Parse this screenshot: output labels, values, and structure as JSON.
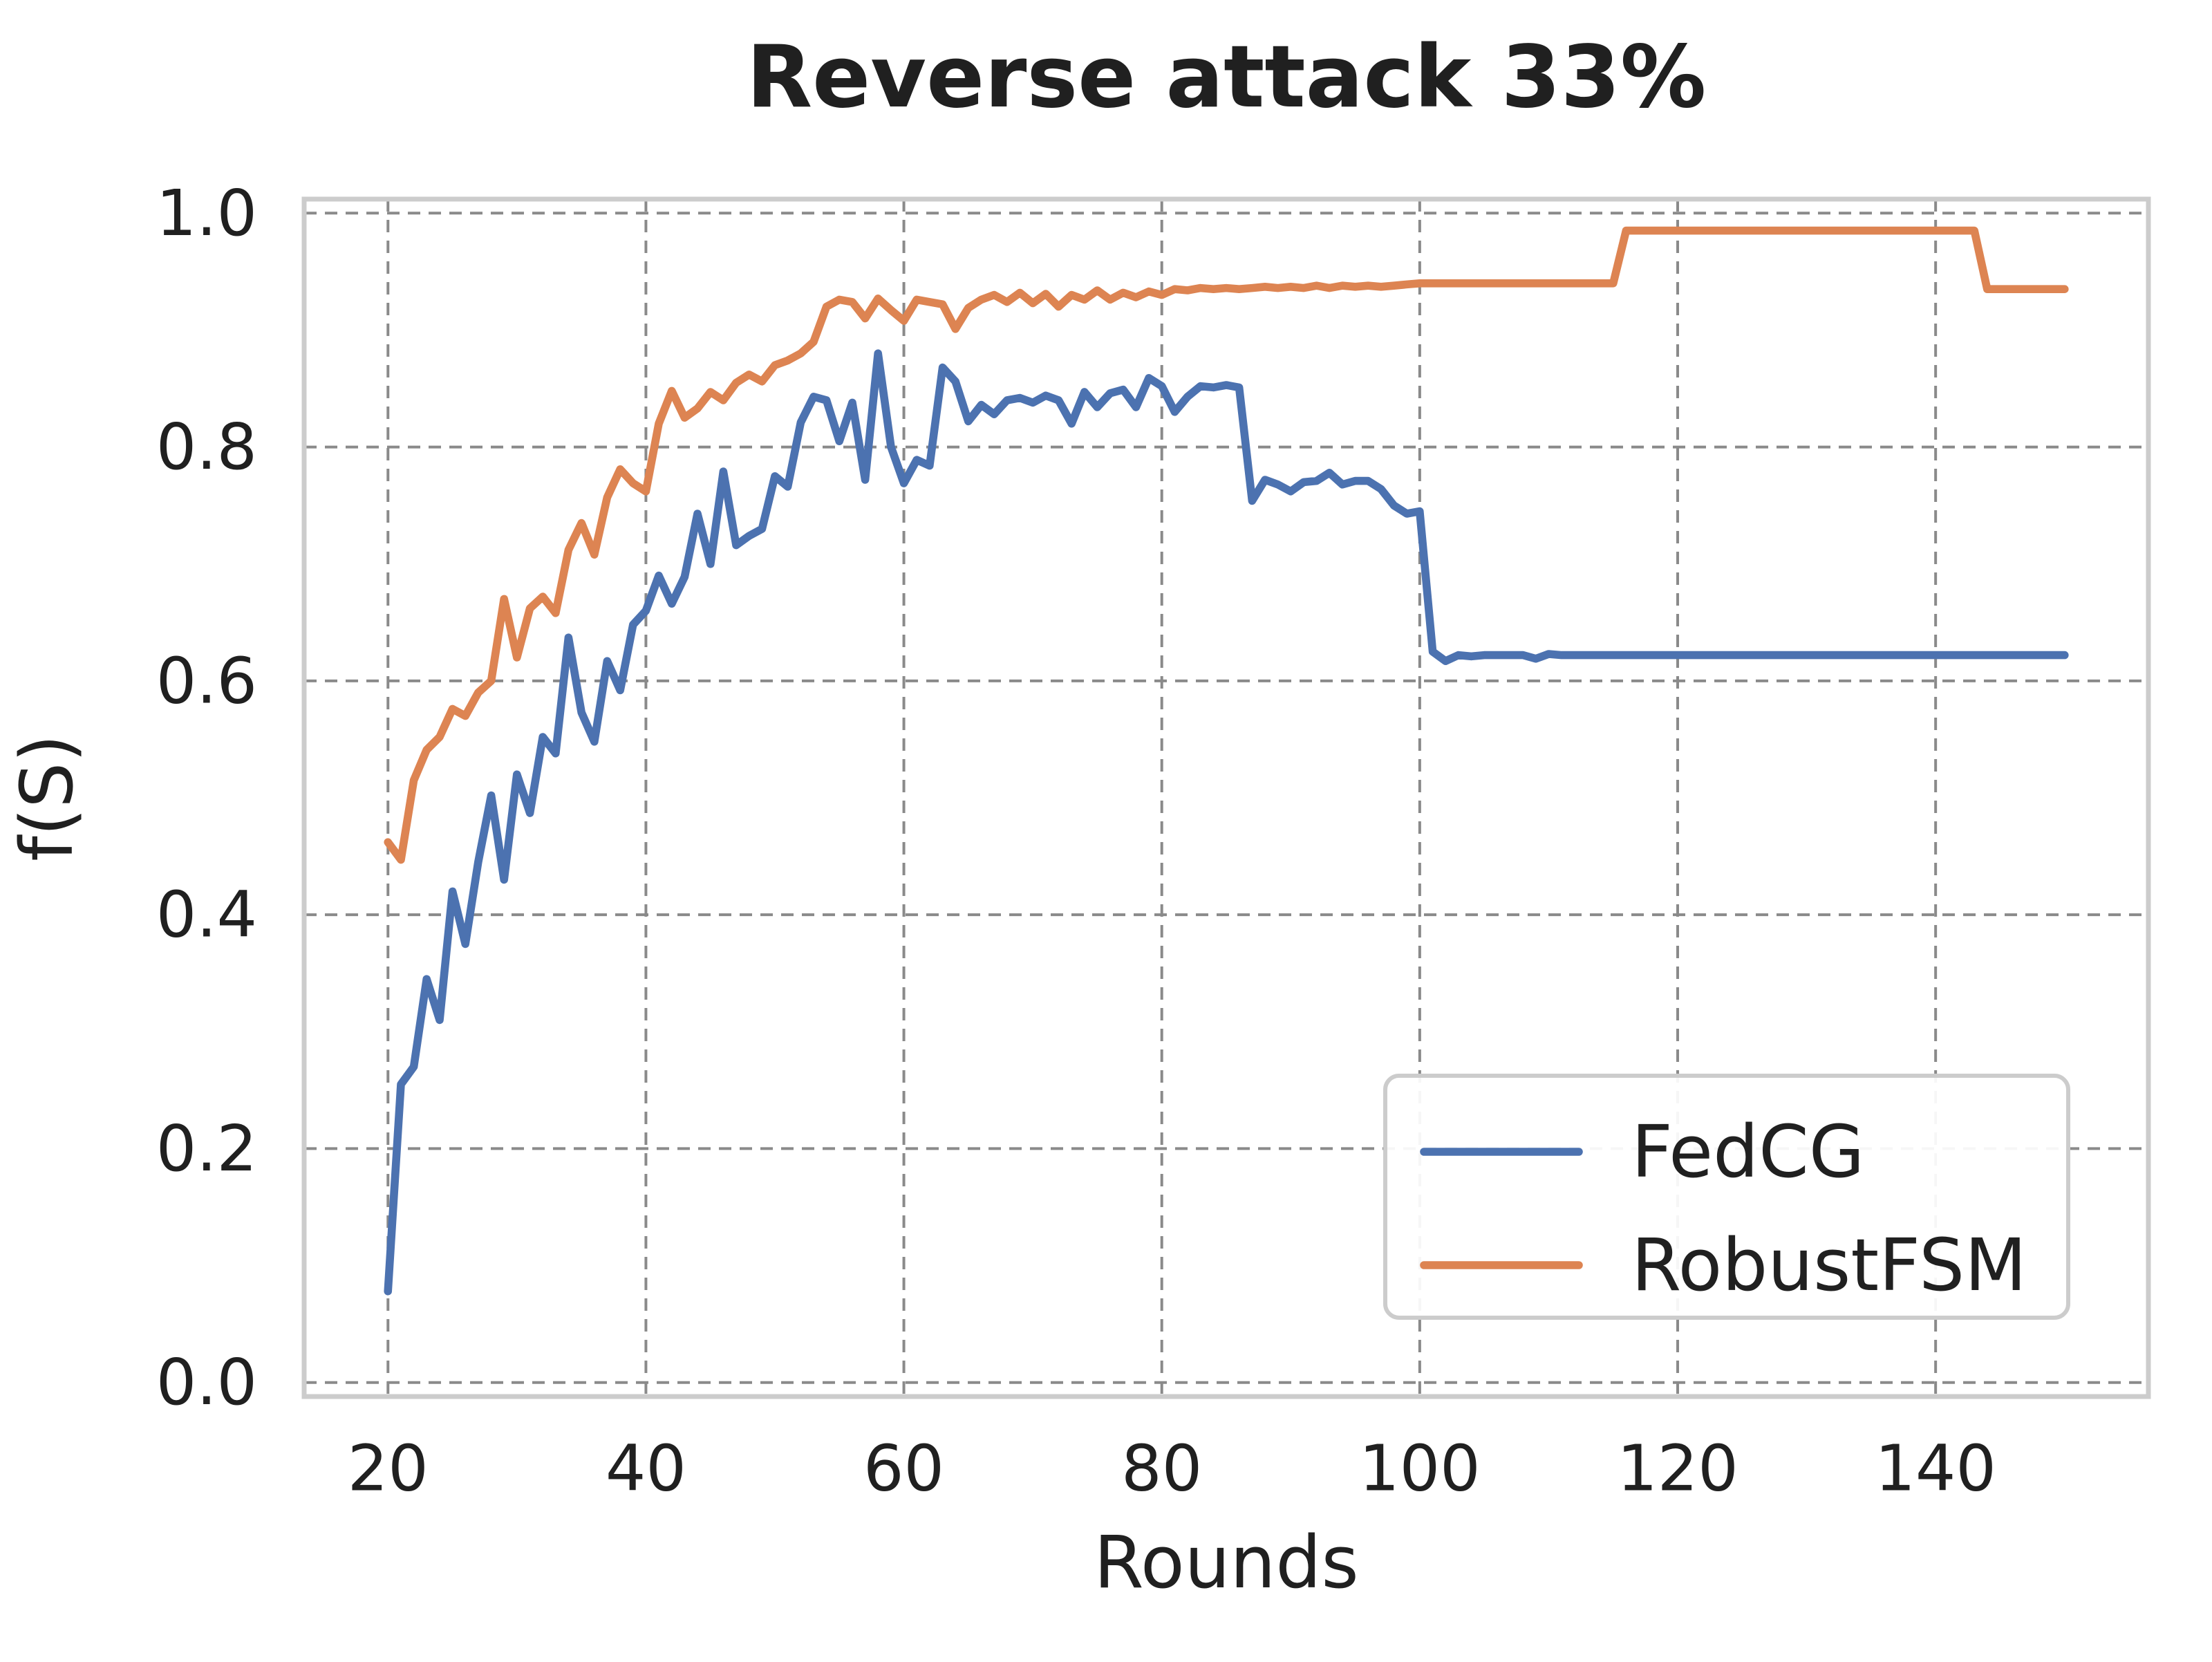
{
  "colors": {
    "fedcg_blue": "#4C72B0",
    "robustfsm_orange": "#DD8452",
    "grid_gray": "#8a8a8a",
    "spine_gray": "#cccccc",
    "text_dark": "#202020",
    "legend_bg": "#ffffff",
    "background": "#ffffff"
  },
  "chart_data": {
    "type": "line",
    "title": "Reverse attack 33%",
    "xlabel": "Rounds",
    "ylabel": "f(S)",
    "grid": true,
    "grid_style": "dashed",
    "legend_position": "lower right",
    "xlim": [
      13.5,
      156.5
    ],
    "ylim": [
      -0.012,
      1.012
    ],
    "x_ticks": [
      20,
      40,
      60,
      80,
      100,
      120,
      140
    ],
    "y_ticks": [
      0.0,
      0.2,
      0.4,
      0.6,
      0.8,
      1.0
    ],
    "y_tick_labels": [
      "0.0",
      "0.2",
      "0.4",
      "0.6",
      "0.8",
      "1.0"
    ],
    "x_start": 20,
    "x_step": 1,
    "x_end": 150,
    "series": [
      {
        "name": "FedCG",
        "color": "#4C72B0",
        "values": [
          0.078,
          0.255,
          0.27,
          0.345,
          0.31,
          0.42,
          0.375,
          0.445,
          0.502,
          0.43,
          0.52,
          0.487,
          0.552,
          0.538,
          0.637,
          0.573,
          0.548,
          0.617,
          0.592,
          0.648,
          0.66,
          0.69,
          0.666,
          0.689,
          0.743,
          0.7,
          0.779,
          0.716,
          0.724,
          0.73,
          0.775,
          0.766,
          0.821,
          0.843,
          0.84,
          0.805,
          0.838,
          0.772,
          0.88,
          0.8,
          0.769,
          0.789,
          0.784,
          0.868,
          0.856,
          0.822,
          0.836,
          0.828,
          0.84,
          0.842,
          0.838,
          0.844,
          0.84,
          0.82,
          0.847,
          0.834,
          0.846,
          0.849,
          0.834,
          0.859,
          0.852,
          0.83,
          0.843,
          0.852,
          0.851,
          0.853,
          0.851,
          0.754,
          0.772,
          0.768,
          0.762,
          0.77,
          0.771,
          0.778,
          0.768,
          0.771,
          0.771,
          0.764,
          0.75,
          0.743,
          0.745,
          0.625,
          0.617,
          0.622,
          0.621,
          0.622,
          0.622,
          0.622,
          0.622,
          0.619,
          0.623,
          0.622,
          0.622,
          0.622,
          0.622,
          0.622,
          0.622,
          0.622,
          0.622,
          0.622,
          0.622,
          0.622,
          0.622,
          0.622,
          0.622,
          0.622,
          0.622,
          0.622,
          0.622,
          0.622,
          0.622,
          0.622,
          0.622,
          0.622,
          0.622,
          0.622,
          0.622,
          0.622,
          0.622,
          0.622,
          0.622,
          0.622,
          0.622,
          0.622,
          0.622,
          0.622,
          0.622,
          0.622,
          0.622,
          0.622,
          0.622
        ]
      },
      {
        "name": "RobustFSM",
        "color": "#DD8452",
        "values": [
          0.462,
          0.447,
          0.515,
          0.541,
          0.552,
          0.576,
          0.57,
          0.59,
          0.6,
          0.67,
          0.62,
          0.662,
          0.672,
          0.658,
          0.712,
          0.735,
          0.708,
          0.757,
          0.781,
          0.769,
          0.762,
          0.82,
          0.848,
          0.825,
          0.833,
          0.847,
          0.84,
          0.855,
          0.862,
          0.856,
          0.87,
          0.874,
          0.88,
          0.89,
          0.92,
          0.926,
          0.924,
          0.91,
          0.927,
          0.917,
          0.908,
          0.926,
          0.924,
          0.922,
          0.901,
          0.919,
          0.926,
          0.93,
          0.924,
          0.932,
          0.923,
          0.931,
          0.92,
          0.93,
          0.926,
          0.934,
          0.926,
          0.932,
          0.928,
          0.933,
          0.93,
          0.935,
          0.934,
          0.936,
          0.935,
          0.936,
          0.935,
          0.936,
          0.937,
          0.936,
          0.937,
          0.936,
          0.938,
          0.936,
          0.938,
          0.937,
          0.938,
          0.937,
          0.938,
          0.939,
          0.94,
          0.94,
          0.94,
          0.94,
          0.94,
          0.94,
          0.94,
          0.94,
          0.94,
          0.94,
          0.94,
          0.94,
          0.94,
          0.94,
          0.94,
          0.94,
          0.985,
          0.985,
          0.985,
          0.985,
          0.985,
          0.985,
          0.985,
          0.985,
          0.985,
          0.985,
          0.985,
          0.985,
          0.985,
          0.985,
          0.985,
          0.985,
          0.985,
          0.985,
          0.985,
          0.985,
          0.985,
          0.985,
          0.985,
          0.985,
          0.985,
          0.985,
          0.985,
          0.985,
          0.935,
          0.935,
          0.935,
          0.935,
          0.935,
          0.935,
          0.935
        ]
      }
    ],
    "legend": [
      {
        "label": "FedCG",
        "color": "#4C72B0"
      },
      {
        "label": "RobustFSM",
        "color": "#DD8452"
      }
    ]
  }
}
